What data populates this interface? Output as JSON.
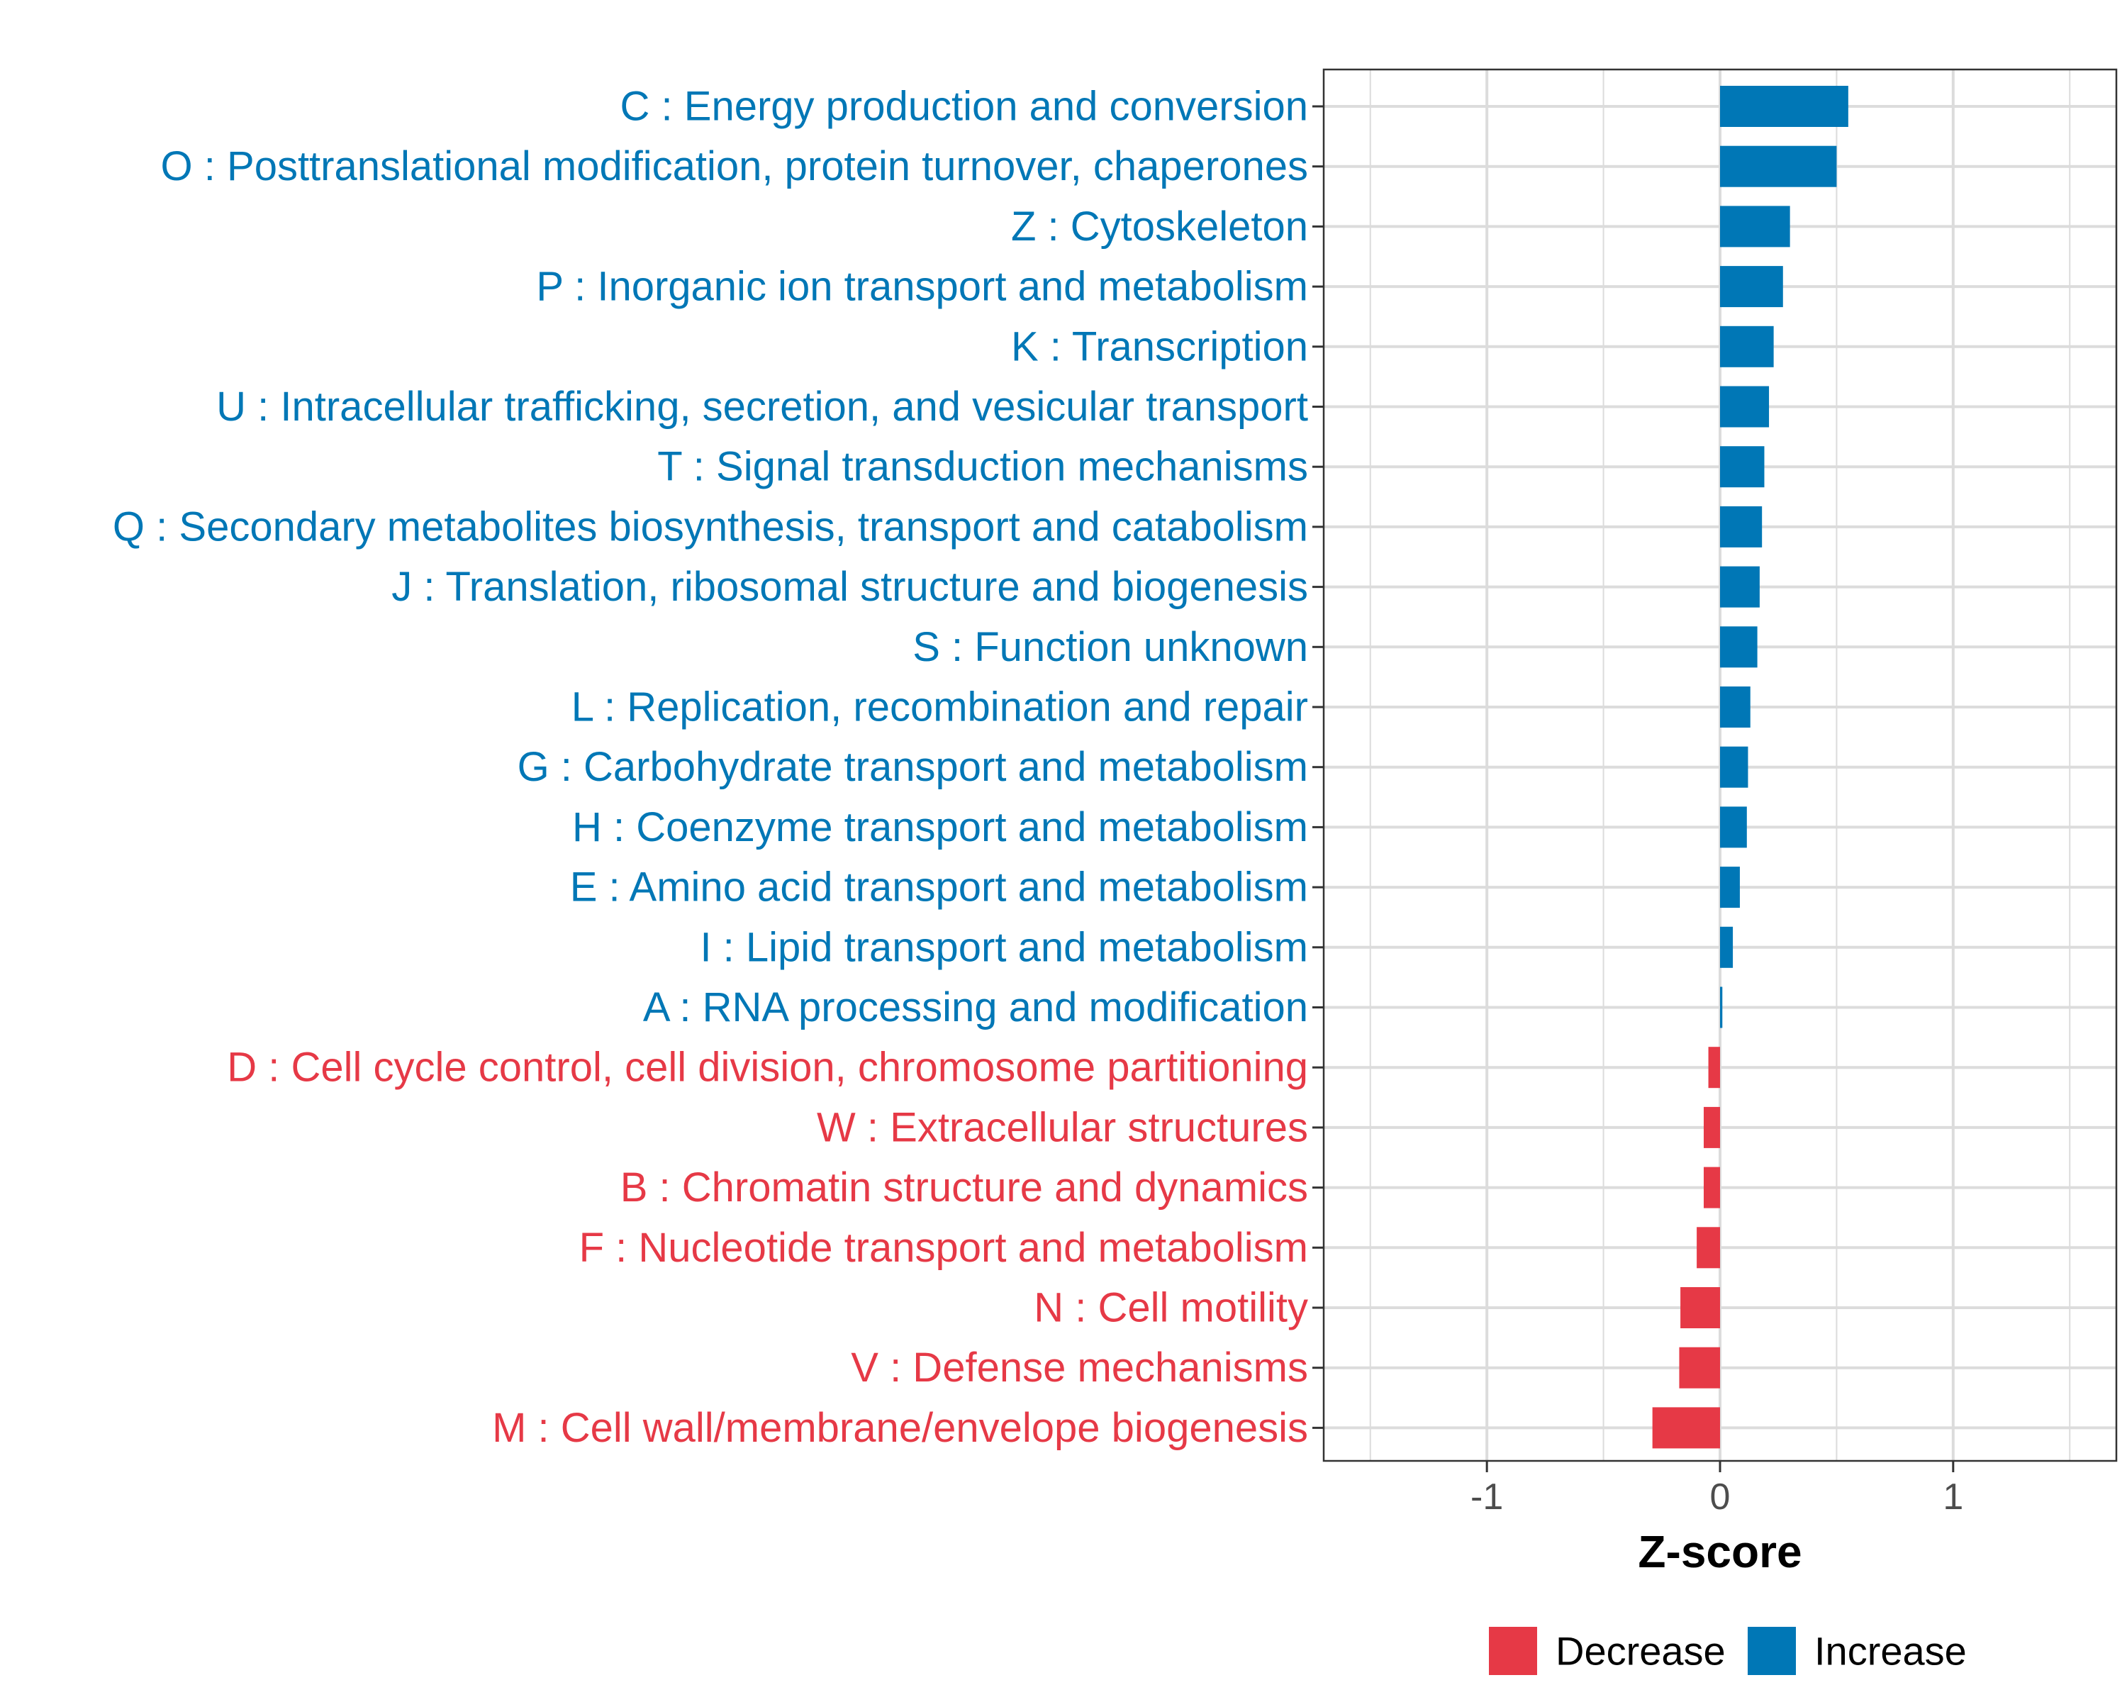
{
  "chart_data": {
    "type": "bar",
    "orientation": "horizontal",
    "title": "",
    "xlabel": "Z-score",
    "ylabel": "",
    "xlim": [
      -1.7,
      1.7
    ],
    "xticks": [
      -1,
      0,
      1
    ],
    "xtick_labels": [
      "-1",
      "0",
      "1"
    ],
    "grid": true,
    "legend_position": "bottom",
    "colors": {
      "Decrease": "#e63946",
      "Increase": "#0077b6"
    },
    "legend": [
      {
        "label": "Decrease",
        "color": "#e63946"
      },
      {
        "label": "Increase",
        "color": "#0077b6"
      }
    ],
    "categories": [
      "C : Energy production and conversion",
      "O : Posttranslational modification, protein turnover, chaperones",
      "Z : Cytoskeleton",
      "P : Inorganic ion transport and metabolism",
      "K : Transcription",
      "U : Intracellular trafficking, secretion, and vesicular transport",
      "T : Signal transduction mechanisms",
      "Q : Secondary metabolites biosynthesis, transport and catabolism",
      "J : Translation, ribosomal structure and biogenesis",
      "S : Function unknown",
      "L : Replication, recombination and repair",
      "G : Carbohydrate transport and metabolism",
      "H : Coenzyme transport and metabolism",
      "E : Amino acid transport and metabolism",
      "I : Lipid transport and metabolism",
      "A : RNA processing and modification",
      "D : Cell cycle control, cell division, chromosome partitioning",
      "W : Extracellular structures",
      "B : Chromatin structure and dynamics",
      "F : Nucleotide transport and metabolism",
      "N : Cell motility",
      "V : Defense mechanisms",
      "M : Cell wall/membrane/envelope biogenesis"
    ],
    "values": [
      0.55,
      0.5,
      0.3,
      0.27,
      0.23,
      0.21,
      0.19,
      0.18,
      0.17,
      0.16,
      0.13,
      0.12,
      0.115,
      0.085,
      0.055,
      0.01,
      -0.05,
      -0.07,
      -0.07,
      -0.1,
      -0.17,
      -0.175,
      -0.29
    ],
    "groups": [
      "Increase",
      "Increase",
      "Increase",
      "Increase",
      "Increase",
      "Increase",
      "Increase",
      "Increase",
      "Increase",
      "Increase",
      "Increase",
      "Increase",
      "Increase",
      "Increase",
      "Increase",
      "Increase",
      "Decrease",
      "Decrease",
      "Decrease",
      "Decrease",
      "Decrease",
      "Decrease",
      "Decrease"
    ]
  }
}
